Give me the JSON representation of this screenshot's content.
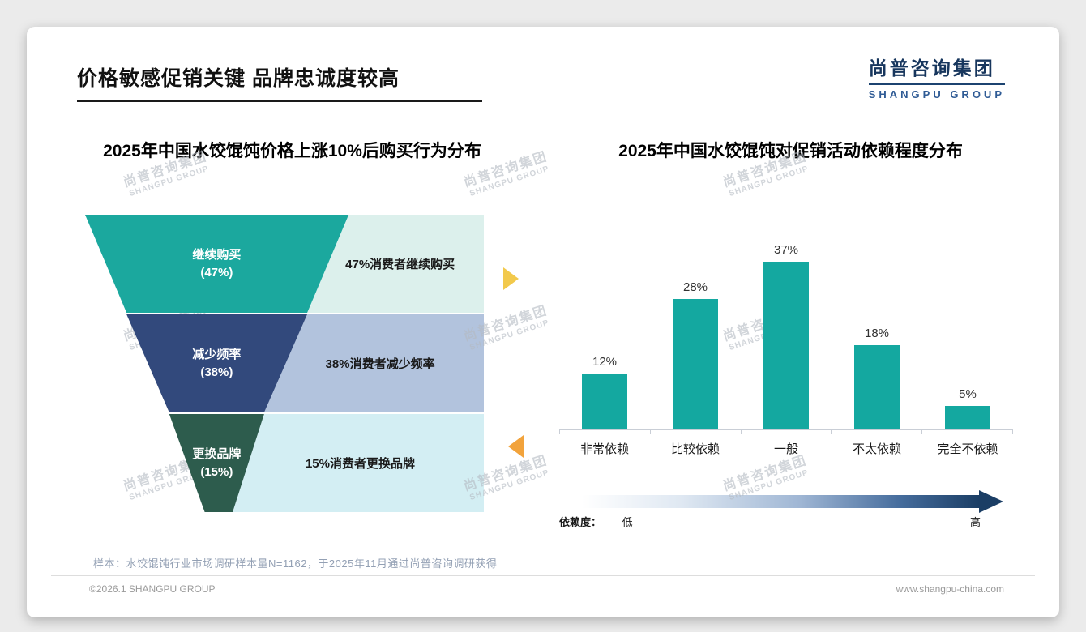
{
  "page": {
    "title": "价格敏感促销关键 品牌忠诚度较高",
    "sample_note": "样本：水饺馄饨行业市场调研样本量N=1162，于2025年11月通过尚普咨询调研获得",
    "footer_left": "©2026.1 SHANGPU GROUP",
    "footer_right": "www.shangpu-china.com"
  },
  "logo": {
    "cn": "尚普咨询集团",
    "en": "SHANGPU GROUP"
  },
  "watermark": {
    "cn": "尚普咨询集团",
    "en": "SHANGPU GROUP"
  },
  "colors": {
    "teal": "#14a8a0",
    "navy": "#17365d",
    "arrow_up_yellow": "#f2c94c",
    "arrow_down_orange": "#f2a33c",
    "gradient_end_navy": "#1b3e65"
  },
  "chart_data": [
    {
      "type": "funnel",
      "title": "2025年中国水饺馄饨价格上涨10%后购买行为分布",
      "levels": [
        {
          "label": "继续购买",
          "pct": "(47%)",
          "value": 47,
          "desc": "47%消费者继续购买",
          "color": "#1ba89e",
          "desc_bg": "#dcf0ec"
        },
        {
          "label": "减少频率",
          "pct": "(38%)",
          "value": 38,
          "desc": "38%消费者减少频率",
          "color": "#32497c",
          "desc_bg": "#b2c3dd"
        },
        {
          "label": "更换品牌",
          "pct": "(15%)",
          "value": 15,
          "desc": "15%消费者更换品牌",
          "color": "#2d5c4d",
          "desc_bg": "#d3eef3"
        }
      ]
    },
    {
      "type": "bar",
      "title": "2025年中国水饺馄饨对促销活动依赖程度分布",
      "categories": [
        "非常依赖",
        "比较依赖",
        "一般",
        "不太依赖",
        "完全不依赖"
      ],
      "values": [
        12,
        28,
        37,
        18,
        5
      ],
      "unit": "%",
      "ylim": [
        0,
        40
      ],
      "bar_color": "#14a8a0",
      "grid": false,
      "dependency_axis": {
        "label": "依赖度：",
        "low": "低",
        "high": "高"
      }
    }
  ]
}
